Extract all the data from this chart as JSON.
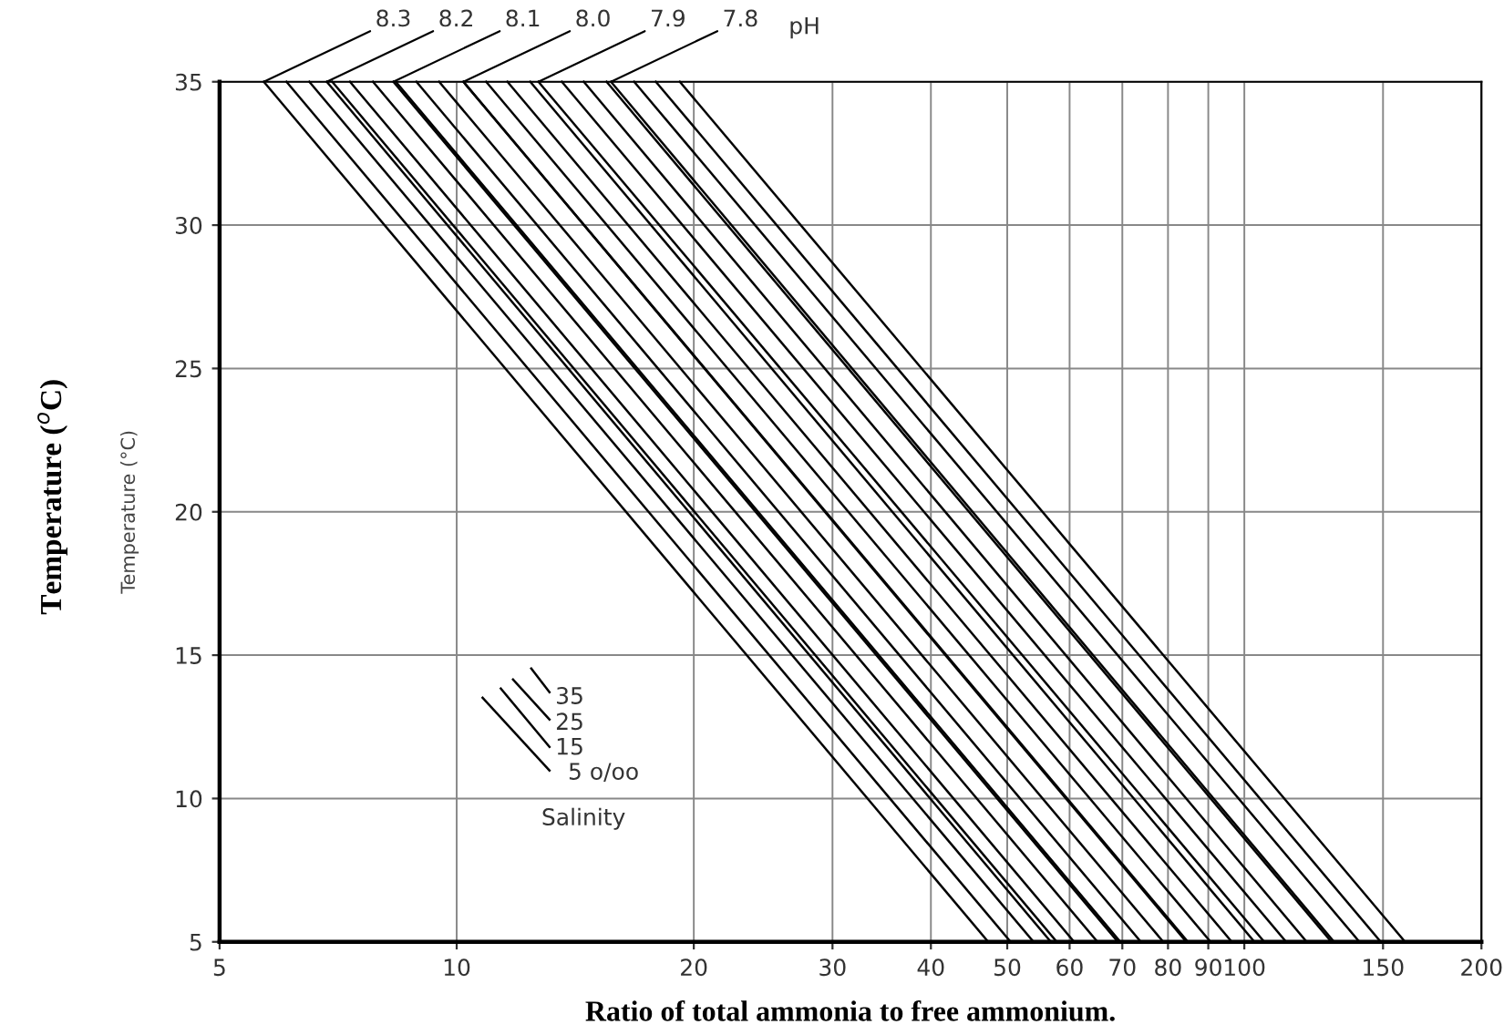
{
  "chart_data": {
    "type": "line",
    "xlabel": "Ratio of total ammonia to free ammonium.",
    "ylabel": "Temperature (°C)",
    "log": "x",
    "grid": true,
    "marker": "none",
    "line_style": "solid",
    "xlim": [
      5,
      200
    ],
    "xticks": [
      5,
      10,
      20,
      30,
      40,
      50,
      60,
      70,
      80,
      90,
      100,
      150,
      200
    ],
    "ylim": [
      5,
      35
    ],
    "yticks": [
      5,
      10,
      15,
      20,
      25,
      30,
      35
    ],
    "series": [
      {
        "color": "#000000",
        "x": [
          5.69,
          47.3
        ],
        "values": [
          35,
          5
        ]
      },
      {
        "color": "#000000",
        "x": [
          6.08,
          50.5
        ],
        "values": [
          35,
          5
        ]
      },
      {
        "color": "#000000",
        "x": [
          6.5,
          54.0
        ],
        "values": [
          35,
          5
        ]
      },
      {
        "color": "#000000",
        "x": [
          6.95,
          57.8
        ],
        "values": [
          35,
          5
        ]
      },
      {
        "color": "#000000",
        "x": [
          6.84,
          56.8
        ],
        "values": [
          35,
          5
        ]
      },
      {
        "color": "#000000",
        "x": [
          7.32,
          60.8
        ],
        "values": [
          35,
          5
        ]
      },
      {
        "color": "#000000",
        "x": [
          7.83,
          65.1
        ],
        "values": [
          35,
          5
        ]
      },
      {
        "color": "#000000",
        "x": [
          8.37,
          69.6
        ],
        "values": [
          35,
          5
        ]
      },
      {
        "color": "#000000",
        "x": [
          8.31,
          69.1
        ],
        "values": [
          35,
          5
        ]
      },
      {
        "color": "#000000",
        "x": [
          8.89,
          73.9
        ],
        "values": [
          35,
          5
        ]
      },
      {
        "color": "#000000",
        "x": [
          9.5,
          78.9
        ],
        "values": [
          35,
          5
        ]
      },
      {
        "color": "#000000",
        "x": [
          10.2,
          84.4
        ],
        "values": [
          35,
          5
        ]
      },
      {
        "color": "#000000",
        "x": [
          10.2,
          84.8
        ],
        "values": [
          35,
          5
        ]
      },
      {
        "color": "#000000",
        "x": [
          10.9,
          90.6
        ],
        "values": [
          35,
          5
        ]
      },
      {
        "color": "#000000",
        "x": [
          11.6,
          96.4
        ],
        "values": [
          35,
          5
        ]
      },
      {
        "color": "#000000",
        "x": [
          12.4,
          103
        ],
        "values": [
          35,
          5
        ]
      },
      {
        "color": "#000000",
        "x": [
          12.7,
          106
        ],
        "values": [
          35,
          5
        ]
      },
      {
        "color": "#000000",
        "x": [
          13.6,
          113
        ],
        "values": [
          35,
          5
        ]
      },
      {
        "color": "#000000",
        "x": [
          14.5,
          120
        ],
        "values": [
          35,
          5
        ]
      },
      {
        "color": "#000000",
        "x": [
          15.5,
          129
        ],
        "values": [
          35,
          5
        ]
      },
      {
        "color": "#000000",
        "x": [
          15.7,
          130
        ],
        "values": [
          35,
          5
        ]
      },
      {
        "color": "#000000",
        "x": [
          16.8,
          140
        ],
        "values": [
          35,
          5
        ]
      },
      {
        "color": "#000000",
        "x": [
          17.9,
          149
        ],
        "values": [
          35,
          5
        ]
      },
      {
        "color": "#000000",
        "x": [
          19.2,
          160
        ],
        "values": [
          35,
          5
        ]
      }
    ],
    "annotations": [
      {
        "text": "8.3",
        "x": 5.69,
        "y": 35
      },
      {
        "text": "8.2",
        "x": 6.84,
        "y": 35
      },
      {
        "text": "8.1",
        "x": 8.31,
        "y": 35
      },
      {
        "text": "8.0",
        "x": 10.2,
        "y": 35
      },
      {
        "text": "7.9",
        "x": 12.7,
        "y": 35
      },
      {
        "text": "7.8",
        "x": 15.7,
        "y": 35
      },
      "pH",
      "35",
      "25",
      "15",
      "5 o/oo",
      "Salinity",
      "Temperature ($^{o}$C)"
    ]
  }
}
